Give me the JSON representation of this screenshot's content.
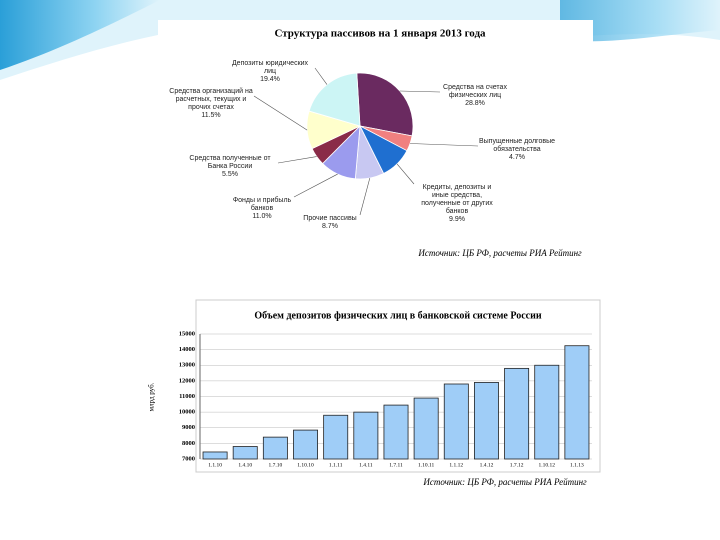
{
  "chart_data": [
    {
      "type": "pie",
      "title": "Структура пассивов на 1 января 2013 года",
      "categories": [
        "Средства на счетах физических лиц",
        "Выпущенные долговые обязательства",
        "Кредиты, депозиты и иные средства, полученные от других банков",
        "Прочие пассивы",
        "Фонды и прибыль банков",
        "Средства полученные от Банка России",
        "Средства организаций на расчетных, текущих и прочих счетах",
        "Депозиты юридических лиц"
      ],
      "values": [
        28.8,
        4.7,
        9.9,
        8.7,
        11.0,
        5.5,
        11.5,
        19.4
      ],
      "value_labels": [
        "28.8%",
        "4.7%",
        "9.9%",
        "8.7%",
        "11.0%",
        "5.5%",
        "11.5%",
        "19.4%"
      ],
      "colors": [
        "#6a2a60",
        "#f08080",
        "#1f6fd0",
        "#c8c8f2",
        "#9b9bee",
        "#8a2b48",
        "#ffffcc",
        "#ccf5f5"
      ],
      "source": "Источник: ЦБ РФ, расчеты РИА Рейтинг"
    },
    {
      "type": "bar",
      "title": "Объем депозитов физических лиц в банковской системе России",
      "y_label": "млрд руб.",
      "categories": [
        "1.1.10",
        "1.4.10",
        "1.7.10",
        "1.10.10",
        "1.1.11",
        "1.4.11",
        "1.7.11",
        "1.10.11",
        "1.1.12",
        "1.4.12",
        "1.7.12",
        "1.10.12",
        "1.1.13"
      ],
      "values": [
        7450,
        7800,
        8400,
        8850,
        9800,
        10000,
        10450,
        10900,
        11800,
        11900,
        12800,
        13000,
        14250
      ],
      "color": "#9fcdf7",
      "ylim": [
        7000,
        15000
      ],
      "yticks": [
        7000,
        8000,
        9000,
        10000,
        11000,
        12000,
        13000,
        14000,
        15000
      ],
      "grid": true,
      "source": "Источник: ЦБ РФ, расчеты РИА Рейтинг"
    }
  ]
}
